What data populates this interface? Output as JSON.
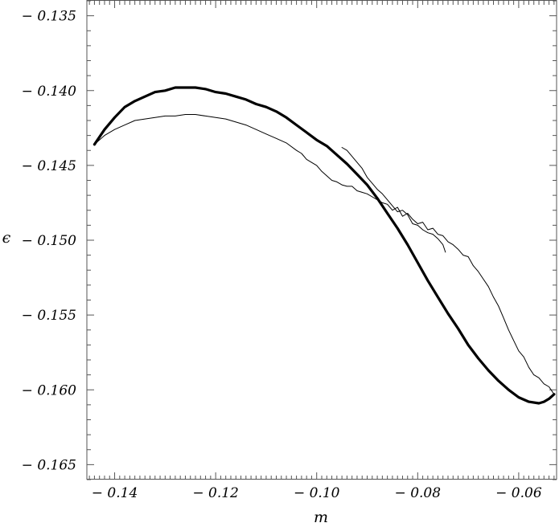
{
  "chart_data": {
    "type": "line",
    "title": "",
    "xlabel": "m",
    "ylabel": "ϵ",
    "xlim": [
      -0.1455,
      -0.0525
    ],
    "ylim": [
      -0.166,
      -0.134
    ],
    "grid": false,
    "legend": "none",
    "x_ticks": [
      -0.14,
      -0.12,
      -0.1,
      -0.08,
      -0.06
    ],
    "x_tick_labels": [
      "− 0.14",
      "− 0.12",
      "− 0.10",
      "− 0.08",
      "− 0.06"
    ],
    "y_ticks": [
      -0.135,
      -0.14,
      -0.145,
      -0.15,
      -0.155,
      -0.16,
      -0.165
    ],
    "y_tick_labels": [
      "− 0.135",
      "− 0.140",
      "− 0.145",
      "− 0.150",
      "− 0.155",
      "− 0.160",
      "− 0.165"
    ],
    "series": [
      {
        "style": "thick",
        "color": "#000000",
        "points": [
          [
            -0.144,
            -0.1436
          ],
          [
            -0.142,
            -0.1426
          ],
          [
            -0.14,
            -0.1418
          ],
          [
            -0.138,
            -0.1411
          ],
          [
            -0.136,
            -0.1407
          ],
          [
            -0.134,
            -0.1404
          ],
          [
            -0.132,
            -0.1401
          ],
          [
            -0.13,
            -0.14
          ],
          [
            -0.128,
            -0.1398
          ],
          [
            -0.126,
            -0.1398
          ],
          [
            -0.124,
            -0.1398
          ],
          [
            -0.122,
            -0.1399
          ],
          [
            -0.12,
            -0.1401
          ],
          [
            -0.118,
            -0.1402
          ],
          [
            -0.116,
            -0.1404
          ],
          [
            -0.114,
            -0.1406
          ],
          [
            -0.112,
            -0.1409
          ],
          [
            -0.11,
            -0.1411
          ],
          [
            -0.108,
            -0.1414
          ],
          [
            -0.106,
            -0.1418
          ],
          [
            -0.104,
            -0.1423
          ],
          [
            -0.102,
            -0.1428
          ],
          [
            -0.1,
            -0.1433
          ],
          [
            -0.098,
            -0.1437
          ],
          [
            -0.096,
            -0.1443
          ],
          [
            -0.094,
            -0.1449
          ],
          [
            -0.092,
            -0.1456
          ],
          [
            -0.09,
            -0.1463
          ],
          [
            -0.088,
            -0.1472
          ],
          [
            -0.086,
            -0.1482
          ],
          [
            -0.084,
            -0.1492
          ],
          [
            -0.082,
            -0.1503
          ],
          [
            -0.08,
            -0.1515
          ],
          [
            -0.078,
            -0.1527
          ],
          [
            -0.076,
            -0.1538
          ],
          [
            -0.074,
            -0.1549
          ],
          [
            -0.072,
            -0.1559
          ],
          [
            -0.07,
            -0.157
          ],
          [
            -0.068,
            -0.1579
          ],
          [
            -0.066,
            -0.1587
          ],
          [
            -0.064,
            -0.1594
          ],
          [
            -0.062,
            -0.16
          ],
          [
            -0.06,
            -0.1605
          ],
          [
            -0.058,
            -0.1608
          ],
          [
            -0.056,
            -0.1609
          ],
          [
            -0.055,
            -0.1608
          ],
          [
            -0.054,
            -0.1606
          ],
          [
            -0.053,
            -0.1603
          ]
        ]
      },
      {
        "style": "thin",
        "color": "#000000",
        "points": [
          [
            -0.144,
            -0.1436
          ],
          [
            -0.142,
            -0.143
          ],
          [
            -0.14,
            -0.1426
          ],
          [
            -0.138,
            -0.1423
          ],
          [
            -0.136,
            -0.142
          ],
          [
            -0.134,
            -0.1419
          ],
          [
            -0.132,
            -0.1418
          ],
          [
            -0.13,
            -0.1417
          ],
          [
            -0.128,
            -0.1417
          ],
          [
            -0.126,
            -0.1416
          ],
          [
            -0.124,
            -0.1416
          ],
          [
            -0.122,
            -0.1417
          ],
          [
            -0.12,
            -0.1418
          ],
          [
            -0.118,
            -0.1419
          ],
          [
            -0.116,
            -0.1421
          ],
          [
            -0.114,
            -0.1423
          ],
          [
            -0.112,
            -0.1426
          ],
          [
            -0.11,
            -0.1429
          ],
          [
            -0.108,
            -0.1432
          ],
          [
            -0.106,
            -0.1435
          ],
          [
            -0.104,
            -0.144
          ],
          [
            -0.103,
            -0.1442
          ],
          [
            -0.102,
            -0.1446
          ],
          [
            -0.101,
            -0.1448
          ],
          [
            -0.1,
            -0.145
          ],
          [
            -0.099,
            -0.1454
          ],
          [
            -0.098,
            -0.1457
          ],
          [
            -0.097,
            -0.146
          ],
          [
            -0.096,
            -0.1461
          ],
          [
            -0.095,
            -0.1463
          ],
          [
            -0.094,
            -0.1464
          ],
          [
            -0.093,
            -0.1464
          ],
          [
            -0.092,
            -0.1467
          ],
          [
            -0.091,
            -0.1468
          ],
          [
            -0.09,
            -0.1469
          ],
          [
            -0.089,
            -0.1471
          ],
          [
            -0.088,
            -0.1473
          ],
          [
            -0.087,
            -0.1475
          ],
          [
            -0.086,
            -0.1476
          ],
          [
            -0.085,
            -0.148
          ],
          [
            -0.084,
            -0.1478
          ],
          [
            -0.083,
            -0.1484
          ],
          [
            -0.082,
            -0.1482
          ],
          [
            -0.081,
            -0.1486
          ],
          [
            -0.08,
            -0.1489
          ],
          [
            -0.079,
            -0.1488
          ],
          [
            -0.078,
            -0.1493
          ],
          [
            -0.077,
            -0.1492
          ],
          [
            -0.076,
            -0.1496
          ],
          [
            -0.075,
            -0.1497
          ],
          [
            -0.074,
            -0.1501
          ],
          [
            -0.073,
            -0.1503
          ],
          [
            -0.072,
            -0.1506
          ],
          [
            -0.071,
            -0.151
          ],
          [
            -0.07,
            -0.1511
          ],
          [
            -0.069,
            -0.1517
          ],
          [
            -0.068,
            -0.1521
          ],
          [
            -0.067,
            -0.1526
          ],
          [
            -0.066,
            -0.1531
          ],
          [
            -0.065,
            -0.1538
          ],
          [
            -0.064,
            -0.1544
          ],
          [
            -0.063,
            -0.1552
          ],
          [
            -0.062,
            -0.156
          ],
          [
            -0.061,
            -0.1567
          ],
          [
            -0.06,
            -0.1574
          ],
          [
            -0.059,
            -0.1578
          ],
          [
            -0.058,
            -0.1585
          ],
          [
            -0.057,
            -0.159
          ],
          [
            -0.056,
            -0.1592
          ],
          [
            -0.055,
            -0.1596
          ],
          [
            -0.054,
            -0.1598
          ],
          [
            -0.053,
            -0.1603
          ]
        ]
      },
      {
        "style": "thin",
        "color": "#000000",
        "points": [
          [
            -0.095,
            -0.1438
          ],
          [
            -0.094,
            -0.144
          ],
          [
            -0.093,
            -0.1444
          ],
          [
            -0.092,
            -0.1448
          ],
          [
            -0.091,
            -0.1452
          ],
          [
            -0.09,
            -0.1458
          ],
          [
            -0.089,
            -0.1462
          ],
          [
            -0.088,
            -0.1466
          ],
          [
            -0.087,
            -0.1469
          ],
          [
            -0.086,
            -0.1473
          ],
          [
            -0.085,
            -0.1477
          ],
          [
            -0.084,
            -0.1481
          ],
          [
            -0.083,
            -0.148
          ],
          [
            -0.082,
            -0.1483
          ],
          [
            -0.081,
            -0.1489
          ],
          [
            -0.08,
            -0.149
          ],
          [
            -0.079,
            -0.1493
          ],
          [
            -0.078,
            -0.1495
          ],
          [
            -0.077,
            -0.1496
          ],
          [
            -0.076,
            -0.1499
          ],
          [
            -0.075,
            -0.1503
          ],
          [
            -0.0745,
            -0.1508
          ]
        ]
      }
    ]
  }
}
